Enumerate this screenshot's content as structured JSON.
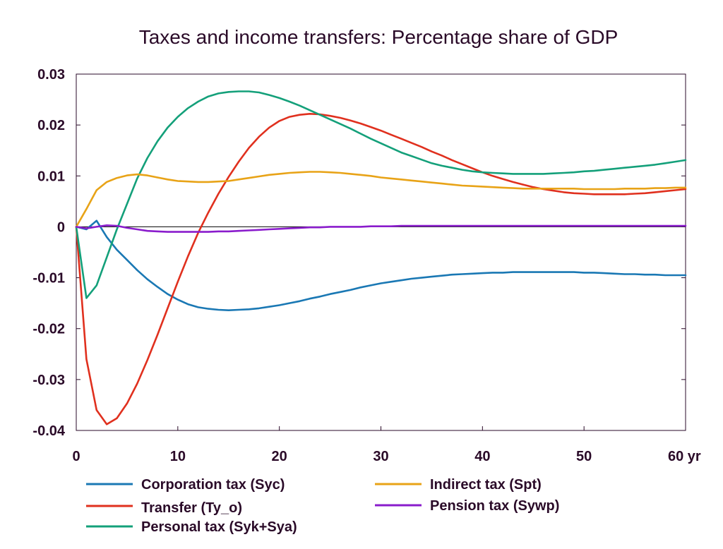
{
  "chart_data": {
    "type": "line",
    "title": "Taxes and income transfers: Percentage share of GDP",
    "xlabel": "",
    "ylabel": "",
    "xlim": [
      0,
      60
    ],
    "ylim": [
      -0.04,
      0.03
    ],
    "xticks": [
      0,
      10,
      20,
      30,
      40,
      50,
      60
    ],
    "xtick_labels": [
      "0",
      "10",
      "20",
      "30",
      "40",
      "50",
      "60 yr"
    ],
    "yticks": [
      0.03,
      0.02,
      0.01,
      0,
      -0.01,
      -0.02,
      -0.03,
      -0.04
    ],
    "ytick_labels": [
      "0.03",
      "0.02",
      "0.01",
      "0",
      "-0.01",
      "-0.02",
      "-0.03",
      "-0.04"
    ],
    "grid": false,
    "legend_position": "bottom",
    "x": [
      0,
      1,
      2,
      3,
      4,
      5,
      6,
      7,
      8,
      9,
      10,
      11,
      12,
      13,
      14,
      15,
      16,
      17,
      18,
      19,
      20,
      21,
      22,
      23,
      24,
      25,
      26,
      27,
      28,
      29,
      30,
      31,
      32,
      33,
      34,
      35,
      36,
      37,
      38,
      39,
      40,
      41,
      42,
      43,
      44,
      45,
      46,
      47,
      48,
      49,
      50,
      51,
      52,
      53,
      54,
      55,
      56,
      57,
      58,
      59,
      60
    ],
    "series": [
      {
        "name": "Corporation tax (Syc)",
        "color": "#1a78b4",
        "values": [
          0,
          -0.0005,
          0.0012,
          -0.002,
          -0.0045,
          -0.0065,
          -0.0085,
          -0.0103,
          -0.0118,
          -0.0132,
          -0.0143,
          -0.0152,
          -0.0158,
          -0.0161,
          -0.0163,
          -0.0164,
          -0.0163,
          -0.0162,
          -0.016,
          -0.0157,
          -0.0154,
          -0.015,
          -0.0146,
          -0.0141,
          -0.0137,
          -0.0132,
          -0.0128,
          -0.0124,
          -0.0119,
          -0.0115,
          -0.0111,
          -0.0108,
          -0.0105,
          -0.0102,
          -0.01,
          -0.0098,
          -0.0096,
          -0.0094,
          -0.0093,
          -0.0092,
          -0.0091,
          -0.009,
          -0.009,
          -0.0089,
          -0.0089,
          -0.0089,
          -0.0089,
          -0.0089,
          -0.0089,
          -0.0089,
          -0.009,
          -0.009,
          -0.0091,
          -0.0092,
          -0.0093,
          -0.0093,
          -0.0094,
          -0.0094,
          -0.0095,
          -0.0095,
          -0.0095
        ]
      },
      {
        "name": "Transfer (Ty_o)",
        "color": "#e0301e",
        "values": [
          0,
          -0.026,
          -0.036,
          -0.0388,
          -0.0376,
          -0.0347,
          -0.0308,
          -0.0262,
          -0.0212,
          -0.016,
          -0.0108,
          -0.0058,
          -0.0012,
          0.0028,
          0.0065,
          0.0098,
          0.0128,
          0.0155,
          0.0177,
          0.0195,
          0.0208,
          0.0216,
          0.022,
          0.0222,
          0.0221,
          0.0218,
          0.0214,
          0.0209,
          0.0203,
          0.0196,
          0.0189,
          0.0181,
          0.0173,
          0.0165,
          0.0157,
          0.0148,
          0.014,
          0.0131,
          0.0123,
          0.0115,
          0.0107,
          0.01,
          0.0094,
          0.0088,
          0.0083,
          0.0078,
          0.0074,
          0.0071,
          0.0068,
          0.0066,
          0.0065,
          0.0064,
          0.0064,
          0.0064,
          0.0064,
          0.0065,
          0.0066,
          0.0068,
          0.007,
          0.0072,
          0.0074
        ]
      },
      {
        "name": "Personal tax (Syk+Sya)",
        "color": "#14a07a",
        "values": [
          0,
          -0.014,
          -0.0115,
          -0.006,
          -0.0005,
          0.0045,
          0.0095,
          0.0135,
          0.0168,
          0.0195,
          0.0216,
          0.0233,
          0.0246,
          0.0256,
          0.0262,
          0.0265,
          0.0266,
          0.0266,
          0.0264,
          0.0259,
          0.0253,
          0.0246,
          0.0238,
          0.0229,
          0.022,
          0.0211,
          0.0202,
          0.0193,
          0.0183,
          0.0173,
          0.0164,
          0.0155,
          0.0146,
          0.0139,
          0.0132,
          0.0125,
          0.012,
          0.0116,
          0.0112,
          0.0109,
          0.0107,
          0.0106,
          0.0105,
          0.0104,
          0.0104,
          0.0104,
          0.0104,
          0.0105,
          0.0106,
          0.0107,
          0.0109,
          0.011,
          0.0112,
          0.0114,
          0.0116,
          0.0118,
          0.012,
          0.0122,
          0.0125,
          0.0128,
          0.0131
        ]
      },
      {
        "name": "Indirect tax (Spt)",
        "color": "#e8a317",
        "values": [
          0,
          0.0035,
          0.0072,
          0.0088,
          0.0096,
          0.0101,
          0.0103,
          0.0101,
          0.0097,
          0.0093,
          0.009,
          0.0089,
          0.0088,
          0.0088,
          0.0089,
          0.009,
          0.0093,
          0.0096,
          0.0099,
          0.0102,
          0.0104,
          0.0106,
          0.0107,
          0.0108,
          0.0108,
          0.0107,
          0.0106,
          0.0104,
          0.0102,
          0.01,
          0.0097,
          0.0095,
          0.0093,
          0.0091,
          0.0089,
          0.0087,
          0.0085,
          0.0083,
          0.0081,
          0.008,
          0.0079,
          0.0078,
          0.0077,
          0.0076,
          0.0075,
          0.0075,
          0.0075,
          0.0075,
          0.0075,
          0.0075,
          0.0074,
          0.0074,
          0.0074,
          0.0074,
          0.0075,
          0.0075,
          0.0075,
          0.0076,
          0.0076,
          0.0077,
          0.0077
        ]
      },
      {
        "name": "Pension tax (Sywp)",
        "color": "#8a1ccc",
        "values": [
          0,
          -0.0003,
          0,
          0.0003,
          0.0002,
          -0.0002,
          -0.0005,
          -0.0008,
          -0.0009,
          -0.001,
          -0.001,
          -0.001,
          -0.001,
          -0.001,
          -0.0009,
          -0.0009,
          -0.0008,
          -0.0007,
          -0.0006,
          -0.0005,
          -0.0004,
          -0.0003,
          -0.0002,
          -0.0001,
          -0.0001,
          0,
          0,
          0,
          0,
          0.0001,
          0.0001,
          0.0001,
          0.0002,
          0.0002,
          0.0002,
          0.0002,
          0.0002,
          0.0002,
          0.0002,
          0.0002,
          0.0002,
          0.0002,
          0.0002,
          0.0002,
          0.0002,
          0.0002,
          0.0002,
          0.0002,
          0.0002,
          0.0002,
          0.0002,
          0.0002,
          0.0002,
          0.0002,
          0.0002,
          0.0002,
          0.0002,
          0.0002,
          0.0002,
          0.0002,
          0.0002
        ]
      }
    ]
  }
}
